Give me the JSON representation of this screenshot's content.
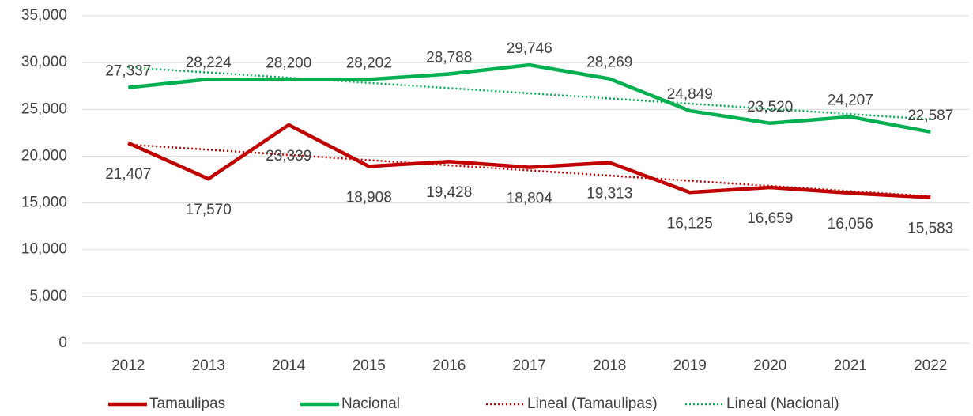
{
  "chart_data": {
    "type": "line",
    "categories": [
      "2012",
      "2013",
      "2014",
      "2015",
      "2016",
      "2017",
      "2018",
      "2019",
      "2020",
      "2021",
      "2022"
    ],
    "series": [
      {
        "name": "Tamaulipas",
        "color": "#c00000",
        "values": [
          21407,
          17570,
          23339,
          18908,
          19428,
          18804,
          19313,
          16125,
          16659,
          16056,
          15583
        ],
        "value_labels": [
          "21,407",
          "17,570",
          "23,339",
          "18,908",
          "19,428",
          "18,804",
          "19,313",
          "16,125",
          "16,659",
          "16,056",
          "15,583"
        ],
        "trendline": {
          "name": "Lineal (Tamaulipas)",
          "type": "linear"
        }
      },
      {
        "name": "Nacional",
        "color": "#00b050",
        "values": [
          27337,
          28224,
          28200,
          28202,
          28788,
          29746,
          28269,
          24849,
          23520,
          24207,
          22587
        ],
        "value_labels": [
          "27,337",
          "28,224",
          "28,200",
          "28,202",
          "28,788",
          "29,746",
          "28,269",
          "24,849",
          "23,520",
          "24,207",
          "22,587"
        ],
        "trendline": {
          "name": "Lineal (Nacional)",
          "type": "linear"
        }
      }
    ],
    "ylim": [
      0,
      35000
    ],
    "yticks": [
      0,
      {
        "value": 5000,
        "label": "5,000"
      },
      {
        "value": 10000,
        "label": "10,000"
      },
      {
        "value": 15000,
        "label": "15,000"
      },
      {
        "value": 20000,
        "label": "20,000"
      },
      {
        "value": 25000,
        "label": "25,000"
      },
      {
        "value": 30000,
        "label": "30,000"
      },
      {
        "value": 35000,
        "label": "35,000"
      }
    ],
    "grid": true,
    "legend": "bottom"
  }
}
